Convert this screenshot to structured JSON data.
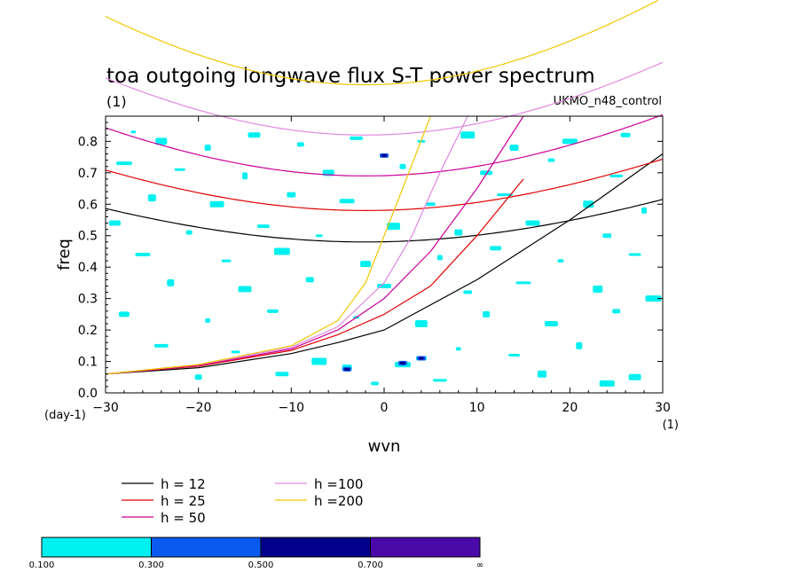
{
  "chart_data": {
    "type": "line",
    "title": "toa outgoing longwave flux S-T power spectrum",
    "subtitle_left": "(1)",
    "subtitle_right": "UKMO_n48_control",
    "xlabel": "wvn",
    "ylabel": "freq",
    "x_unit": "(1)",
    "y_unit": "(day-1)",
    "xlim": [
      -30,
      30
    ],
    "ylim": [
      0,
      0.88
    ],
    "x_ticks": [
      -30,
      -20,
      -10,
      0,
      10,
      20,
      30
    ],
    "x_tick_labels": [
      "−30",
      "−20",
      "−10",
      "0",
      "10",
      "20",
      "30"
    ],
    "y_ticks": [
      0,
      0.1,
      0.2,
      0.3,
      0.4,
      0.5,
      0.6,
      0.7,
      0.8
    ],
    "y_tick_labels": [
      "0.0",
      "0.1",
      "0.2",
      "0.3",
      "0.4",
      "0.5",
      "0.6",
      "0.7",
      "0.8"
    ],
    "grid": false,
    "series": [
      {
        "name": "h = 12",
        "color": "#000000",
        "inertia_gravity_min_freq": 0.48,
        "kelvin_points": [
          [
            -30,
            0.06
          ],
          [
            -20,
            0.08
          ],
          [
            -10,
            0.125
          ],
          [
            -5,
            0.16
          ],
          [
            0,
            0.2
          ],
          [
            10,
            0.36
          ],
          [
            20,
            0.55
          ],
          [
            30,
            0.76
          ]
        ]
      },
      {
        "name": "h = 25",
        "color": "#e00000",
        "inertia_gravity_min_freq": 0.58,
        "kelvin_points": [
          [
            -30,
            0.06
          ],
          [
            -20,
            0.085
          ],
          [
            -10,
            0.135
          ],
          [
            -5,
            0.185
          ],
          [
            0,
            0.25
          ],
          [
            5,
            0.34
          ],
          [
            10,
            0.5
          ],
          [
            15,
            0.68
          ]
        ]
      },
      {
        "name": "h = 50",
        "color": "#cc0099",
        "inertia_gravity_min_freq": 0.69,
        "kelvin_points": [
          [
            -30,
            0.06
          ],
          [
            -20,
            0.087
          ],
          [
            -10,
            0.14
          ],
          [
            -5,
            0.2
          ],
          [
            0,
            0.3
          ],
          [
            5,
            0.45
          ],
          [
            10,
            0.65
          ],
          [
            15,
            0.88
          ]
        ]
      },
      {
        "name": "h =100",
        "color": "#e088e0",
        "inertia_gravity_min_freq": 0.82,
        "kelvin_points": [
          [
            -30,
            0.06
          ],
          [
            -20,
            0.09
          ],
          [
            -10,
            0.145
          ],
          [
            -5,
            0.21
          ],
          [
            0,
            0.35
          ],
          [
            3,
            0.5
          ],
          [
            6,
            0.7
          ],
          [
            9,
            0.88
          ]
        ]
      },
      {
        "name": "h =200",
        "color": "#f0c800",
        "inertia_gravity_min_freq": 0.98,
        "kelvin_points": [
          [
            -30,
            0.06
          ],
          [
            -20,
            0.09
          ],
          [
            -10,
            0.15
          ],
          [
            -5,
            0.23
          ],
          [
            -2,
            0.35
          ],
          [
            0,
            0.5
          ],
          [
            2,
            0.65
          ],
          [
            5,
            0.88
          ]
        ]
      }
    ],
    "contour_levels": [
      {
        "label": "0.100",
        "color": "#00f0f0"
      },
      {
        "label": "0.300",
        "color": "#0a5af0"
      },
      {
        "label": "0.500",
        "color": "#00008c"
      },
      {
        "label": "0.700",
        "color": "#4a0aaa"
      }
    ],
    "colorbar_end_label": "∞",
    "contour_patches": [
      [
        -27,
        0.83
      ],
      [
        -24,
        0.8
      ],
      [
        -19,
        0.78
      ],
      [
        -14,
        0.82
      ],
      [
        -9,
        0.79
      ],
      [
        -3,
        0.81
      ],
      [
        4,
        0.8
      ],
      [
        9,
        0.82
      ],
      [
        14,
        0.78
      ],
      [
        20,
        0.8
      ],
      [
        26,
        0.82
      ],
      [
        -28,
        0.73
      ],
      [
        -22,
        0.71
      ],
      [
        -15,
        0.69
      ],
      [
        -6,
        0.7
      ],
      [
        2,
        0.72
      ],
      [
        11,
        0.7
      ],
      [
        18,
        0.74
      ],
      [
        25,
        0.69
      ],
      [
        -25,
        0.62
      ],
      [
        -18,
        0.6
      ],
      [
        -10,
        0.63
      ],
      [
        -4,
        0.61
      ],
      [
        5,
        0.6
      ],
      [
        13,
        0.63
      ],
      [
        22,
        0.6
      ],
      [
        28,
        0.58
      ],
      [
        -29,
        0.54
      ],
      [
        -21,
        0.51
      ],
      [
        -13,
        0.53
      ],
      [
        -7,
        0.5
      ],
      [
        1,
        0.53
      ],
      [
        8,
        0.51
      ],
      [
        16,
        0.54
      ],
      [
        24,
        0.5
      ],
      [
        -26,
        0.44
      ],
      [
        -17,
        0.42
      ],
      [
        -11,
        0.45
      ],
      [
        -2,
        0.41
      ],
      [
        6,
        0.43
      ],
      [
        12,
        0.46
      ],
      [
        19,
        0.42
      ],
      [
        27,
        0.44
      ],
      [
        -23,
        0.35
      ],
      [
        -15,
        0.33
      ],
      [
        -8,
        0.36
      ],
      [
        0,
        0.34
      ],
      [
        9,
        0.32
      ],
      [
        15,
        0.35
      ],
      [
        23,
        0.33
      ],
      [
        29,
        0.3
      ],
      [
        -28,
        0.25
      ],
      [
        -19,
        0.23
      ],
      [
        -12,
        0.26
      ],
      [
        -3,
        0.24
      ],
      [
        4,
        0.22
      ],
      [
        11,
        0.25
      ],
      [
        18,
        0.22
      ],
      [
        25,
        0.26
      ],
      [
        -24,
        0.15
      ],
      [
        -16,
        0.13
      ],
      [
        -7,
        0.1
      ],
      [
        -4,
        0.08
      ],
      [
        2,
        0.09
      ],
      [
        4,
        0.11
      ],
      [
        8,
        0.14
      ],
      [
        14,
        0.12
      ],
      [
        21,
        0.15
      ],
      [
        27,
        0.05
      ],
      [
        -20,
        0.05
      ],
      [
        -11,
        0.06
      ],
      [
        -1,
        0.03
      ],
      [
        6,
        0.04
      ],
      [
        17,
        0.06
      ],
      [
        24,
        0.03
      ]
    ],
    "contour_strong_patches": [
      [
        0,
        0.755
      ],
      [
        -4,
        0.075
      ],
      [
        2,
        0.095
      ],
      [
        4,
        0.11
      ]
    ]
  }
}
